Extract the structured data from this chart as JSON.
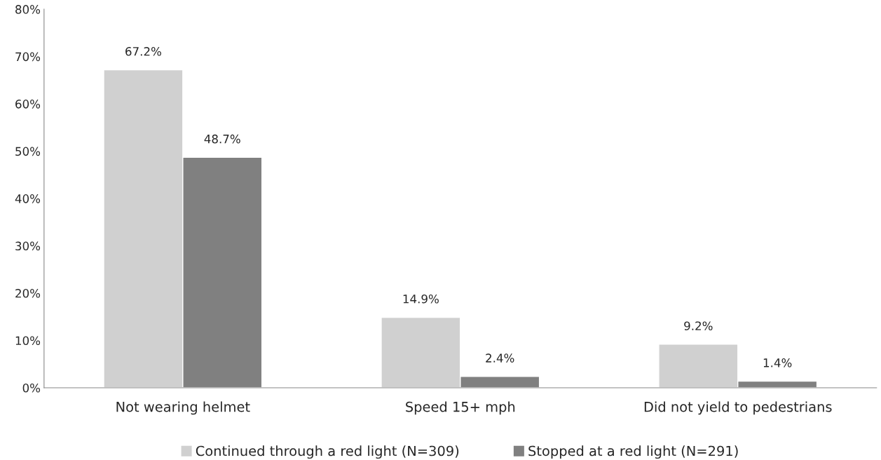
{
  "chart_data": {
    "type": "bar",
    "categories": [
      "Not wearing helmet",
      "Speed 15+ mph",
      "Did not yield to pedestrians"
    ],
    "series": [
      {
        "name": "Continued through a red light (N=309)",
        "color": "#d0d0d0",
        "values": [
          67.2,
          14.9,
          9.2
        ],
        "value_labels": [
          "67.2%",
          "14.9%",
          "9.2%"
        ]
      },
      {
        "name": "Stopped at a red light (N=291)",
        "color": "#808080",
        "values": [
          48.7,
          2.4,
          1.4
        ],
        "value_labels": [
          "48.7%",
          "2.4%",
          "1.4%"
        ]
      }
    ],
    "ylim": [
      0,
      80
    ],
    "yticks": [
      {
        "value": 0,
        "label": "0%"
      },
      {
        "value": 10,
        "label": "10%"
      },
      {
        "value": 20,
        "label": "20%"
      },
      {
        "value": 30,
        "label": "30%"
      },
      {
        "value": 40,
        "label": "40%"
      },
      {
        "value": 50,
        "label": "50%"
      },
      {
        "value": 60,
        "label": "60%"
      },
      {
        "value": 70,
        "label": "70%"
      },
      {
        "value": 80,
        "label": "80%"
      }
    ],
    "grid": false,
    "legend": "bottom"
  }
}
